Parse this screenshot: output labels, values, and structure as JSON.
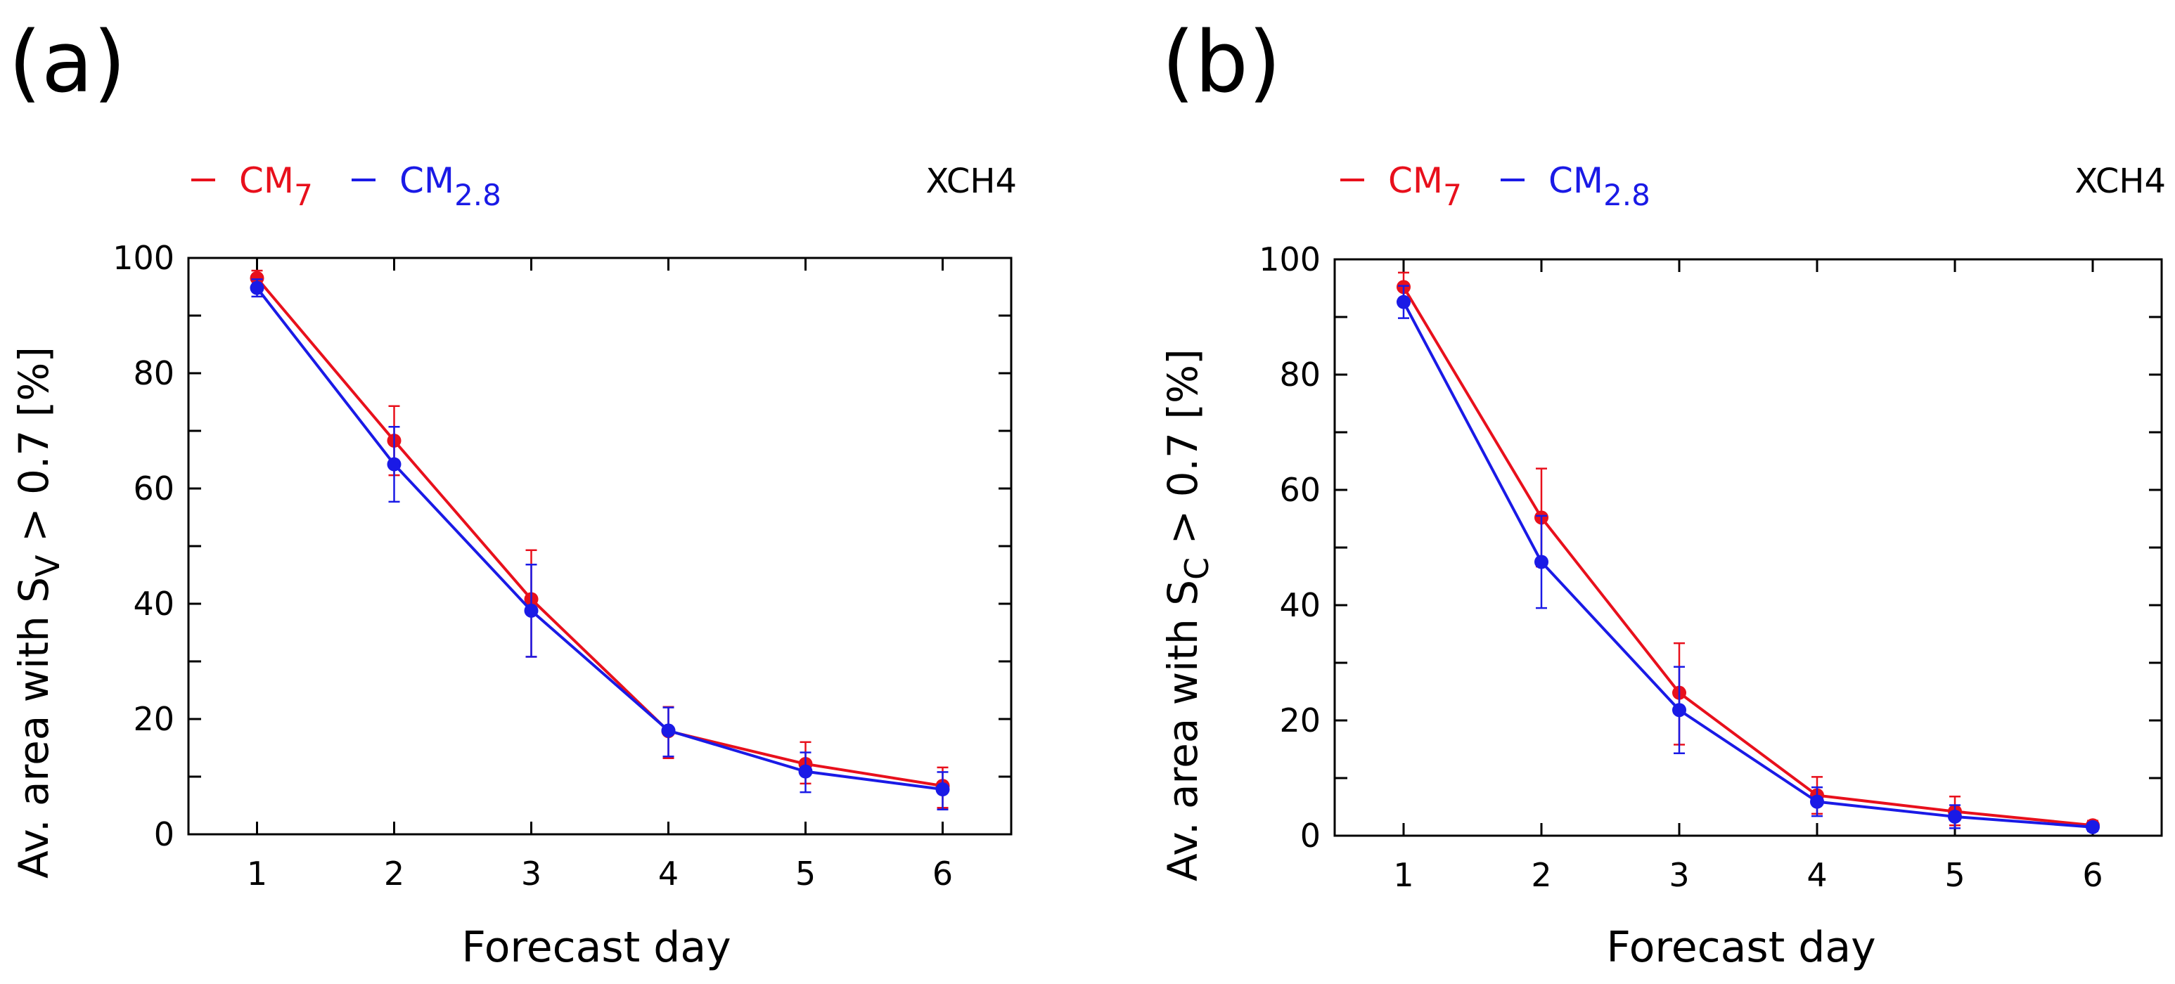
{
  "chart_data": [
    {
      "panel_label": "(a)",
      "type": "line",
      "variable": "XCH4",
      "xlabel": "Forecast day",
      "ylabel": "Av. area with S",
      "ylabel_subscript": "V",
      "ylabel_suffix": " > 0.7 [%]",
      "x": [
        1,
        2,
        3,
        4,
        5,
        6
      ],
      "xlim": [
        0.5,
        6.5
      ],
      "ylim": [
        0,
        100
      ],
      "xticks": [
        1,
        2,
        3,
        4,
        5,
        6
      ],
      "yticks": [
        0,
        20,
        40,
        60,
        80,
        100
      ],
      "grid": false,
      "legend_position": "top-left",
      "series": [
        {
          "name": "CM",
          "name_subscript": "7",
          "color": "#e8101c",
          "values": [
            96.5,
            68.3,
            40.8,
            17.9,
            12.2,
            8.4
          ],
          "err_low": [
            1.3,
            6.0,
            10.0,
            4.7,
            3.4,
            3.8
          ],
          "err_high": [
            1.3,
            6.0,
            8.5,
            4.2,
            3.8,
            3.2
          ]
        },
        {
          "name": "CM",
          "name_subscript": "2.8",
          "color": "#1a1ae6",
          "values": [
            94.8,
            64.2,
            38.8,
            18.0,
            10.9,
            7.8
          ],
          "err_low": [
            1.5,
            6.5,
            8.0,
            4.5,
            3.6,
            3.5
          ],
          "err_high": [
            1.5,
            6.5,
            8.0,
            4.0,
            3.3,
            3.0
          ]
        }
      ]
    },
    {
      "panel_label": "(b)",
      "type": "line",
      "variable": "XCH4",
      "xlabel": "Forecast day",
      "ylabel": "Av. area with S",
      "ylabel_subscript": "C",
      "ylabel_suffix": " > 0.7 [%]",
      "x": [
        1,
        2,
        3,
        4,
        5,
        6
      ],
      "xlim": [
        0.5,
        6.5
      ],
      "ylim": [
        0,
        100
      ],
      "xticks": [
        1,
        2,
        3,
        4,
        5,
        6
      ],
      "yticks": [
        0,
        20,
        40,
        60,
        80,
        100
      ],
      "grid": false,
      "legend_position": "top-left",
      "series": [
        {
          "name": "CM",
          "name_subscript": "7",
          "color": "#e8101c",
          "values": [
            95.2,
            55.2,
            24.8,
            7.0,
            4.2,
            1.8
          ],
          "err_low": [
            2.5,
            8.5,
            9.0,
            3.2,
            2.4,
            0.8
          ],
          "err_high": [
            2.5,
            8.5,
            8.6,
            3.2,
            2.6,
            0.8
          ]
        },
        {
          "name": "CM",
          "name_subscript": "2.8",
          "color": "#1a1ae6",
          "values": [
            92.6,
            47.5,
            21.8,
            5.9,
            3.3,
            1.5
          ],
          "err_low": [
            2.8,
            8.0,
            7.5,
            2.5,
            2.0,
            0.7
          ],
          "err_high": [
            2.8,
            8.0,
            7.5,
            2.5,
            2.0,
            0.7
          ]
        }
      ]
    }
  ]
}
